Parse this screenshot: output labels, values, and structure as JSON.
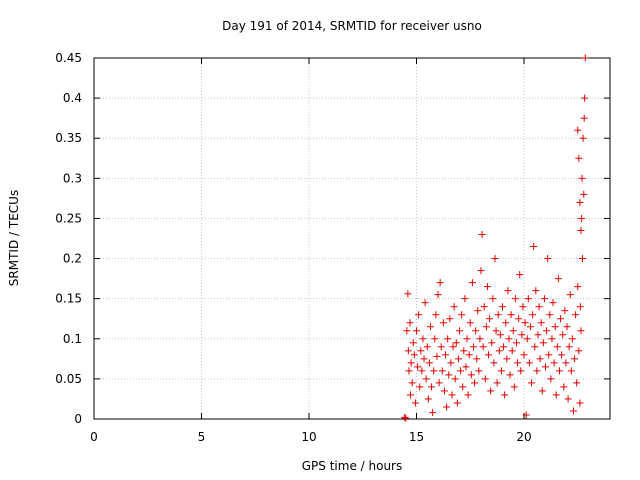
{
  "chart_data": {
    "type": "scatter",
    "title": "Day 191 of 2014, SRMTID for receiver usno",
    "xlabel": "GPS time / hours",
    "ylabel": "SRMTID / TECUs",
    "xlim": [
      0,
      24
    ],
    "ylim": [
      0,
      0.45
    ],
    "xticks": [
      0,
      5,
      10,
      15,
      20
    ],
    "yticks": [
      0,
      0.05,
      0.1,
      0.15,
      0.2,
      0.25,
      0.3,
      0.35,
      0.4,
      0.45
    ],
    "xtick_labels": [
      "0",
      "5",
      "10",
      "15",
      "20"
    ],
    "ytick_labels": [
      "0",
      "0.05",
      "0.1",
      "0.15",
      "0.2",
      "0.25",
      "0.3",
      "0.35",
      "0.4",
      "0.45"
    ],
    "grid": true,
    "marker": "+",
    "marker_color": "#e00000",
    "series": [
      {
        "name": "SRMTID",
        "points": [
          [
            14.45,
            0.002
          ],
          [
            14.5,
            0.001
          ],
          [
            14.55,
            0.11
          ],
          [
            14.6,
            0.156
          ],
          [
            14.62,
            0.085
          ],
          [
            14.65,
            0.06
          ],
          [
            14.7,
            0.12
          ],
          [
            14.72,
            0.03
          ],
          [
            14.75,
            0.07
          ],
          [
            14.8,
            0.045
          ],
          [
            14.85,
            0.095
          ],
          [
            14.9,
            0.08
          ],
          [
            14.95,
            0.02
          ],
          [
            15.0,
            0.11
          ],
          [
            15.05,
            0.065
          ],
          [
            15.1,
            0.13
          ],
          [
            15.15,
            0.04
          ],
          [
            15.2,
            0.085
          ],
          [
            15.25,
            0.06
          ],
          [
            15.3,
            0.1
          ],
          [
            15.35,
            0.075
          ],
          [
            15.4,
            0.145
          ],
          [
            15.45,
            0.05
          ],
          [
            15.5,
            0.09
          ],
          [
            15.55,
            0.025
          ],
          [
            15.6,
            0.07
          ],
          [
            15.65,
            0.115
          ],
          [
            15.7,
            0.04
          ],
          [
            15.75,
            0.008
          ],
          [
            15.8,
            0.06
          ],
          [
            15.85,
            0.1
          ],
          [
            15.9,
            0.13
          ],
          [
            15.95,
            0.078
          ],
          [
            16.0,
            0.155
          ],
          [
            16.05,
            0.045
          ],
          [
            16.1,
            0.17
          ],
          [
            16.15,
            0.09
          ],
          [
            16.2,
            0.06
          ],
          [
            16.25,
            0.12
          ],
          [
            16.3,
            0.035
          ],
          [
            16.35,
            0.08
          ],
          [
            16.4,
            0.015
          ],
          [
            16.45,
            0.1
          ],
          [
            16.5,
            0.055
          ],
          [
            16.55,
            0.125
          ],
          [
            16.6,
            0.07
          ],
          [
            16.65,
            0.03
          ],
          [
            16.7,
            0.09
          ],
          [
            16.75,
            0.14
          ],
          [
            16.8,
            0.05
          ],
          [
            16.85,
            0.095
          ],
          [
            16.9,
            0.02
          ],
          [
            16.95,
            0.075
          ],
          [
            17.0,
            0.11
          ],
          [
            17.05,
            0.06
          ],
          [
            17.1,
            0.13
          ],
          [
            17.15,
            0.04
          ],
          [
            17.2,
            0.085
          ],
          [
            17.25,
            0.15
          ],
          [
            17.3,
            0.065
          ],
          [
            17.35,
            0.1
          ],
          [
            17.4,
            0.03
          ],
          [
            17.45,
            0.08
          ],
          [
            17.5,
            0.12
          ],
          [
            17.55,
            0.055
          ],
          [
            17.6,
            0.17
          ],
          [
            17.65,
            0.09
          ],
          [
            17.7,
            0.045
          ],
          [
            17.75,
            0.11
          ],
          [
            17.8,
            0.075
          ],
          [
            17.85,
            0.135
          ],
          [
            17.9,
            0.06
          ],
          [
            17.95,
            0.1
          ],
          [
            18.0,
            0.185
          ],
          [
            18.05,
            0.23
          ],
          [
            18.1,
            0.09
          ],
          [
            18.15,
            0.14
          ],
          [
            18.2,
            0.05
          ],
          [
            18.25,
            0.115
          ],
          [
            18.3,
            0.165
          ],
          [
            18.35,
            0.08
          ],
          [
            18.4,
            0.125
          ],
          [
            18.45,
            0.035
          ],
          [
            18.5,
            0.095
          ],
          [
            18.55,
            0.15
          ],
          [
            18.6,
            0.07
          ],
          [
            18.65,
            0.2
          ],
          [
            18.7,
            0.11
          ],
          [
            18.75,
            0.045
          ],
          [
            18.8,
            0.13
          ],
          [
            18.85,
            0.085
          ],
          [
            18.9,
            0.105
          ],
          [
            18.95,
            0.06
          ],
          [
            19.0,
            0.14
          ],
          [
            19.05,
            0.09
          ],
          [
            19.1,
            0.03
          ],
          [
            19.15,
            0.12
          ],
          [
            19.2,
            0.075
          ],
          [
            19.25,
            0.16
          ],
          [
            19.3,
            0.1
          ],
          [
            19.35,
            0.055
          ],
          [
            19.4,
            0.13
          ],
          [
            19.45,
            0.085
          ],
          [
            19.5,
            0.11
          ],
          [
            19.55,
            0.04
          ],
          [
            19.6,
            0.15
          ],
          [
            19.65,
            0.095
          ],
          [
            19.7,
            0.07
          ],
          [
            19.75,
            0.125
          ],
          [
            19.8,
            0.18
          ],
          [
            19.85,
            0.06
          ],
          [
            19.9,
            0.105
          ],
          [
            19.95,
            0.14
          ],
          [
            20.0,
            0.08
          ],
          [
            20.05,
            0.12
          ],
          [
            20.1,
            0.005
          ],
          [
            20.15,
            0.1
          ],
          [
            20.2,
            0.15
          ],
          [
            20.25,
            0.07
          ],
          [
            20.3,
            0.115
          ],
          [
            20.35,
            0.045
          ],
          [
            20.4,
            0.13
          ],
          [
            20.45,
            0.215
          ],
          [
            20.5,
            0.09
          ],
          [
            20.55,
            0.16
          ],
          [
            20.6,
            0.06
          ],
          [
            20.65,
            0.105
          ],
          [
            20.7,
            0.14
          ],
          [
            20.75,
            0.075
          ],
          [
            20.8,
            0.12
          ],
          [
            20.85,
            0.035
          ],
          [
            20.9,
            0.095
          ],
          [
            20.95,
            0.15
          ],
          [
            21.0,
            0.065
          ],
          [
            21.05,
            0.11
          ],
          [
            21.1,
            0.2
          ],
          [
            21.15,
            0.08
          ],
          [
            21.2,
            0.13
          ],
          [
            21.25,
            0.05
          ],
          [
            21.3,
            0.1
          ],
          [
            21.35,
            0.145
          ],
          [
            21.4,
            0.07
          ],
          [
            21.45,
            0.115
          ],
          [
            21.5,
            0.03
          ],
          [
            21.55,
            0.09
          ],
          [
            21.6,
            0.175
          ],
          [
            21.65,
            0.06
          ],
          [
            21.7,
            0.125
          ],
          [
            21.75,
            0.08
          ],
          [
            21.8,
            0.105
          ],
          [
            21.85,
            0.04
          ],
          [
            21.9,
            0.135
          ],
          [
            21.95,
            0.07
          ],
          [
            22.0,
            0.115
          ],
          [
            22.05,
            0.025
          ],
          [
            22.1,
            0.09
          ],
          [
            22.15,
            0.155
          ],
          [
            22.2,
            0.06
          ],
          [
            22.25,
            0.1
          ],
          [
            22.3,
            0.01
          ],
          [
            22.35,
            0.075
          ],
          [
            22.4,
            0.13
          ],
          [
            22.45,
            0.045
          ],
          [
            22.5,
            0.165
          ],
          [
            22.55,
            0.085
          ],
          [
            22.6,
            0.02
          ],
          [
            22.62,
            0.14
          ],
          [
            22.65,
            0.11
          ],
          [
            22.68,
            0.25
          ],
          [
            22.7,
            0.3
          ],
          [
            22.72,
            0.2
          ],
          [
            22.75,
            0.35
          ],
          [
            22.78,
            0.28
          ],
          [
            22.8,
            0.375
          ],
          [
            22.82,
            0.4
          ],
          [
            22.85,
            0.45
          ],
          [
            22.5,
            0.36
          ],
          [
            22.55,
            0.325
          ],
          [
            22.6,
            0.27
          ],
          [
            22.65,
            0.235
          ]
        ]
      }
    ]
  }
}
